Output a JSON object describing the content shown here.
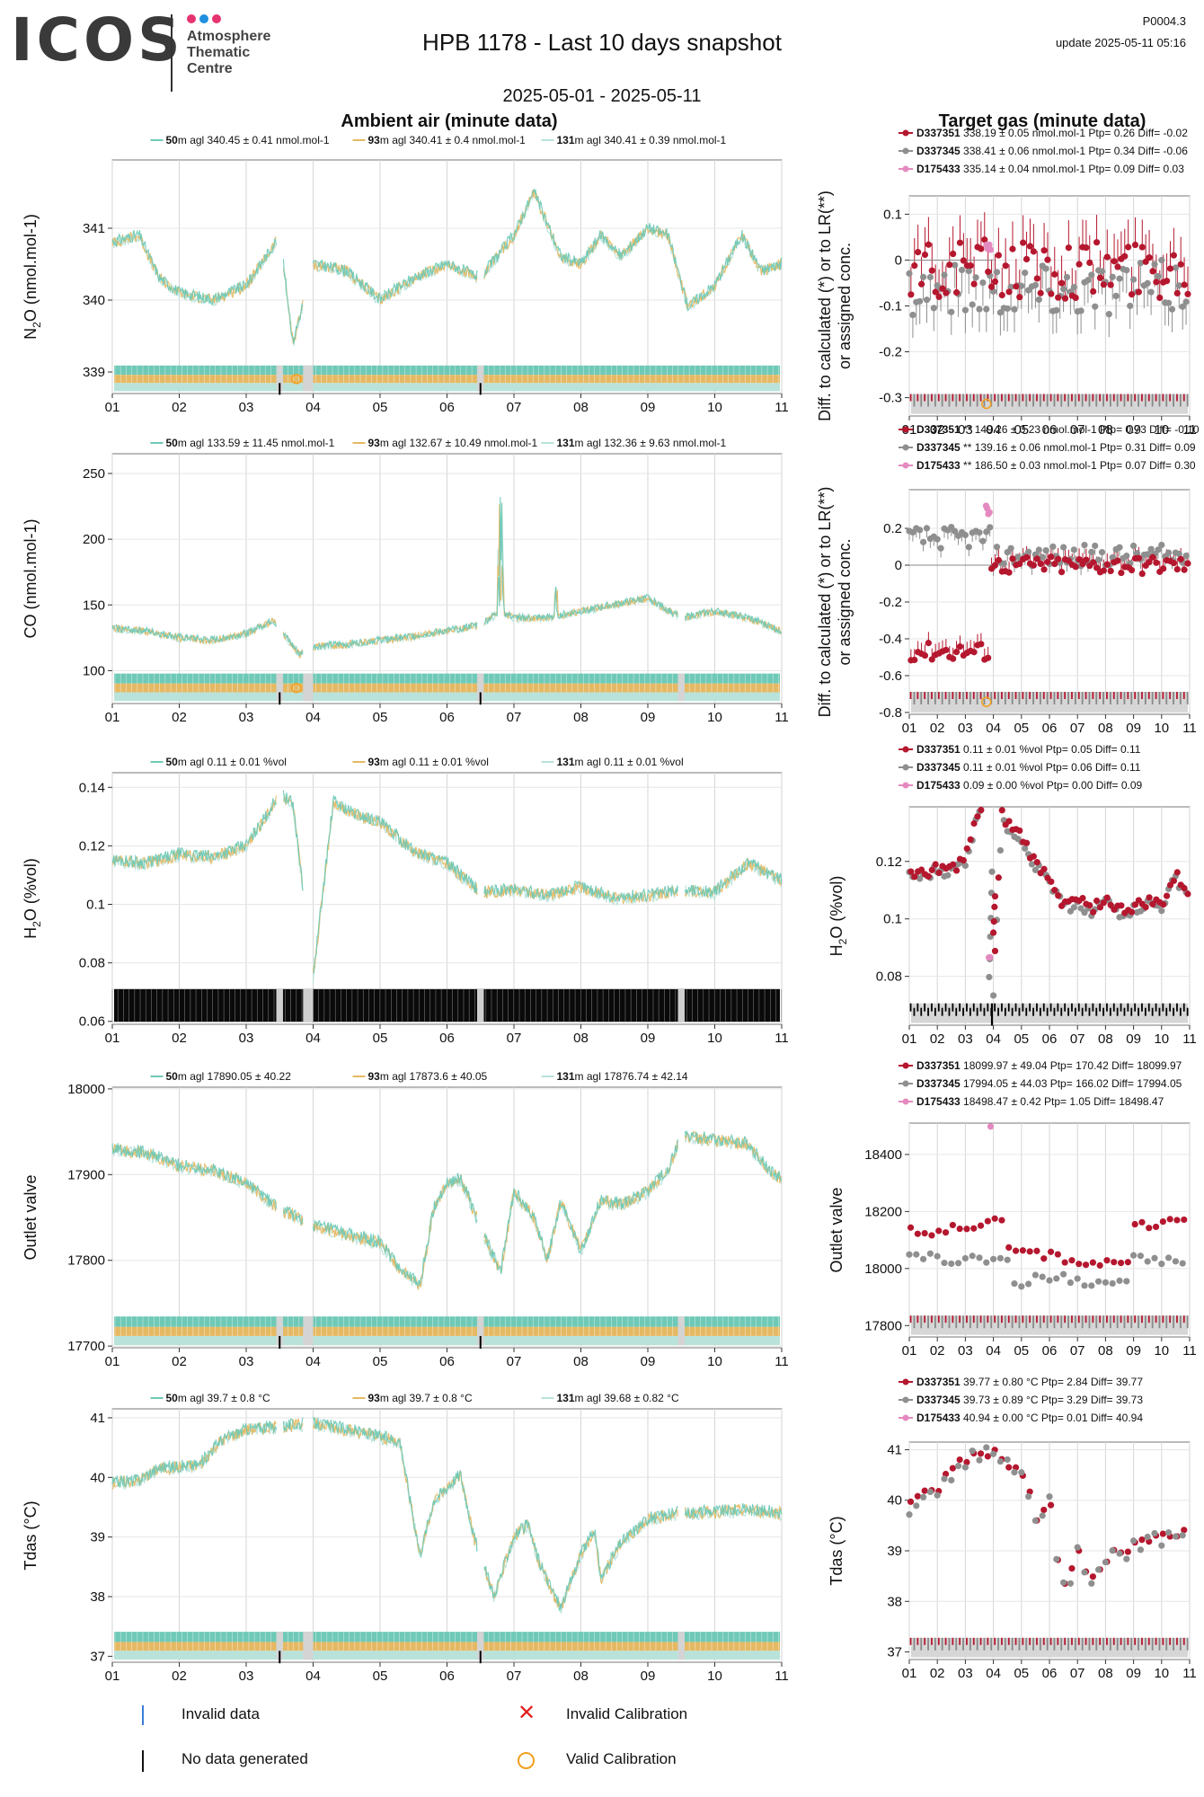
{
  "header": {
    "logo": "ICOS",
    "logo_sub": [
      "Atmosphere",
      "Thematic",
      "Centre"
    ],
    "logo_dot_colors": [
      "#e6336f",
      "#1f8fe0",
      "#e6336f"
    ],
    "title": "HPB 1178 - Last 10 days snapshot",
    "date_range": "2025-05-01 - 2025-05-11",
    "code": "P0004.3",
    "update": "update  2025-05-11 05:16"
  },
  "sections": {
    "left": "Ambient air (minute data)",
    "right": "Target gas (minute data)"
  },
  "colors": {
    "h50": "#6fc9b7",
    "h93": "#e5b964",
    "h131": "#b9e3da",
    "t1": "#b5172e",
    "t2": "#8f8f8f",
    "t3": "#e58ac0",
    "invalid": "#3b7dd8",
    "invalid_cal": "#e02020",
    "valid_cal": "#f0a020"
  },
  "footer_legend": [
    {
      "icon": "blue-line-icon",
      "label": "Invalid data"
    },
    {
      "icon": "red-x-icon",
      "label": "Invalid Calibration"
    },
    {
      "icon": "black-line-icon",
      "label": "No data generated"
    },
    {
      "icon": "orange-circle-icon",
      "label": "Valid Calibration"
    }
  ],
  "chart_data": [
    {
      "panel": "n2o-ambient",
      "type": "line",
      "ylabel": "N2O (nmol.mol-1)",
      "x_ticks": [
        "01",
        "02",
        "03",
        "04",
        "05",
        "06",
        "07",
        "08",
        "09",
        "10",
        "11"
      ],
      "xlim": [
        1,
        11
      ],
      "ylim": [
        338.7,
        341.95
      ],
      "y_ticks": [
        339,
        340,
        341
      ],
      "legend": [
        {
          "height": "50",
          "text": "m agl 340.45 ± 0.41 nmol.mol-1"
        },
        {
          "height": "93",
          "text": "m agl 340.41 ± 0.4 nmol.mol-1"
        },
        {
          "height": "131",
          "text": "m agl 340.41 ± 0.39 nmol.mol-1"
        }
      ],
      "series_key": [
        {
          "x": 1.0,
          "y": 340.8
        },
        {
          "x": 1.4,
          "y": 340.9
        },
        {
          "x": 1.7,
          "y": 340.3
        },
        {
          "x": 2.0,
          "y": 340.1
        },
        {
          "x": 2.5,
          "y": 340.0
        },
        {
          "x": 3.0,
          "y": 340.2
        },
        {
          "x": 3.3,
          "y": 340.6
        },
        {
          "x": 3.5,
          "y": 340.9
        },
        {
          "x": 3.7,
          "y": 339.4
        },
        {
          "x": 4.0,
          "y": 340.5
        },
        {
          "x": 4.5,
          "y": 340.4
        },
        {
          "x": 5.0,
          "y": 340.0
        },
        {
          "x": 5.5,
          "y": 340.3
        },
        {
          "x": 6.0,
          "y": 340.5
        },
        {
          "x": 6.5,
          "y": 340.3
        },
        {
          "x": 7.0,
          "y": 340.9
        },
        {
          "x": 7.3,
          "y": 341.5
        },
        {
          "x": 7.7,
          "y": 340.6
        },
        {
          "x": 8.0,
          "y": 340.5
        },
        {
          "x": 8.3,
          "y": 340.9
        },
        {
          "x": 8.6,
          "y": 340.6
        },
        {
          "x": 9.0,
          "y": 341.0
        },
        {
          "x": 9.3,
          "y": 340.9
        },
        {
          "x": 9.6,
          "y": 339.9
        },
        {
          "x": 10.0,
          "y": 340.2
        },
        {
          "x": 10.4,
          "y": 340.9
        },
        {
          "x": 10.7,
          "y": 340.4
        },
        {
          "x": 11.0,
          "y": 340.5
        }
      ],
      "markers": {
        "no_data": [
          3.5,
          6.5
        ],
        "valid_cal": [
          3.75
        ],
        "gaps": [
          [
            3.45,
            3.55
          ],
          [
            3.85,
            4.0
          ],
          [
            6.45,
            6.55
          ]
        ]
      }
    },
    {
      "panel": "n2o-target",
      "type": "scatter",
      "ylabel": "Diff. to calculated (*) or to LR(**) or assigned conc.",
      "x_ticks": [
        "01",
        "02",
        "03",
        "04",
        "05",
        "06",
        "07",
        "08",
        "09",
        "10",
        "11"
      ],
      "xlim": [
        1,
        11
      ],
      "ylim": [
        -0.34,
        0.14
      ],
      "y_ticks": [
        0.1,
        0.0,
        -0.1,
        -0.2,
        -0.3
      ],
      "legend": [
        {
          "id": "D337351",
          "text": "338.19 ± 0.05 nmol.mol-1 Ptp= 0.26 Diff= -0.02"
        },
        {
          "id": "D337345",
          "text": "338.41 ± 0.06 nmol.mol-1 Ptp= 0.34 Diff= -0.06"
        },
        {
          "id": "D175433",
          "text": "335.14 ± 0.04 nmol.mol-1 Ptp= 0.09 Diff= 0.03"
        }
      ],
      "band": "calibration",
      "pattern": "n2o"
    },
    {
      "panel": "co-ambient",
      "type": "line",
      "ylabel": "CO (nmol.mol-1)",
      "x_ticks": [
        "01",
        "02",
        "03",
        "04",
        "05",
        "06",
        "07",
        "08",
        "09",
        "10",
        "11"
      ],
      "xlim": [
        1,
        11
      ],
      "ylim": [
        75,
        265
      ],
      "y_ticks": [
        100,
        150,
        200,
        250
      ],
      "legend": [
        {
          "height": "50",
          "text": "m agl 133.59 ± 11.45 nmol.mol-1"
        },
        {
          "height": "93",
          "text": "m agl 132.67 ± 10.49 nmol.mol-1"
        },
        {
          "height": "131",
          "text": "m agl 132.36 ± 9.63 nmol.mol-1"
        }
      ],
      "series_key": [
        {
          "x": 1.0,
          "y": 132
        },
        {
          "x": 1.5,
          "y": 130
        },
        {
          "x": 2.0,
          "y": 125
        },
        {
          "x": 2.5,
          "y": 123
        },
        {
          "x": 3.0,
          "y": 128
        },
        {
          "x": 3.4,
          "y": 138
        },
        {
          "x": 3.6,
          "y": 125
        },
        {
          "x": 3.8,
          "y": 112
        },
        {
          "x": 4.0,
          "y": 118
        },
        {
          "x": 4.5,
          "y": 120
        },
        {
          "x": 5.0,
          "y": 123
        },
        {
          "x": 5.5,
          "y": 126
        },
        {
          "x": 6.0,
          "y": 130
        },
        {
          "x": 6.5,
          "y": 135
        },
        {
          "x": 6.8,
          "y": 145
        },
        {
          "x": 7.0,
          "y": 140
        },
        {
          "x": 7.5,
          "y": 140
        },
        {
          "x": 8.0,
          "y": 145
        },
        {
          "x": 8.5,
          "y": 150
        },
        {
          "x": 9.0,
          "y": 155
        },
        {
          "x": 9.5,
          "y": 140
        },
        {
          "x": 10.0,
          "y": 145
        },
        {
          "x": 10.5,
          "y": 140
        },
        {
          "x": 11.0,
          "y": 130
        }
      ],
      "markers": {
        "no_data": [
          3.5,
          6.5
        ],
        "valid_cal": [
          3.75
        ],
        "gaps": [
          [
            3.45,
            3.55
          ],
          [
            3.85,
            4.0
          ],
          [
            6.45,
            6.55
          ],
          [
            9.45,
            9.55
          ]
        ]
      }
    },
    {
      "panel": "co-target",
      "type": "scatter",
      "ylabel": "Diff. to calculated (*) or to LR(**) or assigned conc.",
      "x_ticks": [
        "01",
        "02",
        "03",
        "04",
        "05",
        "06",
        "07",
        "08",
        "09",
        "10",
        "11"
      ],
      "xlim": [
        1,
        11
      ],
      "ylim": [
        -0.81,
        0.41
      ],
      "y_ticks": [
        0.2,
        0.0,
        -0.2,
        -0.4,
        -0.6,
        -0.8
      ],
      "legend": [
        {
          "id": "D337351",
          "text": "** 149.26 ± 0.23 nmol.mol-1 Ptp= 0.73 Diff= -0.10"
        },
        {
          "id": "D337345",
          "text": "** 139.16 ± 0.06 nmol.mol-1 Ptp= 0.31 Diff= 0.09"
        },
        {
          "id": "D175433",
          "text": "** 186.50 ± 0.03 nmol.mol-1 Ptp= 0.07 Diff= 0.30"
        }
      ],
      "band": "calibration",
      "pattern": "co"
    },
    {
      "panel": "h2o-ambient",
      "type": "line",
      "ylabel": "H2O (%vol)",
      "x_ticks": [
        "01",
        "02",
        "03",
        "04",
        "05",
        "06",
        "07",
        "08",
        "09",
        "10",
        "11"
      ],
      "xlim": [
        1,
        11
      ],
      "ylim": [
        0.059,
        0.145
      ],
      "y_ticks": [
        0.06,
        0.08,
        0.1,
        0.12,
        0.14
      ],
      "legend": [
        {
          "height": "50",
          "text": "m agl 0.11 ± 0.01 %vol"
        },
        {
          "height": "93",
          "text": "m agl 0.11 ± 0.01 %vol"
        },
        {
          "height": "131",
          "text": "m agl 0.11 ± 0.01 %vol"
        }
      ],
      "series_key": [
        {
          "x": 1.0,
          "y": 0.115
        },
        {
          "x": 1.5,
          "y": 0.114
        },
        {
          "x": 2.0,
          "y": 0.117
        },
        {
          "x": 2.5,
          "y": 0.116
        },
        {
          "x": 3.0,
          "y": 0.12
        },
        {
          "x": 3.3,
          "y": 0.13
        },
        {
          "x": 3.5,
          "y": 0.138
        },
        {
          "x": 3.7,
          "y": 0.134
        },
        {
          "x": 4.0,
          "y": 0.075
        },
        {
          "x": 4.3,
          "y": 0.135
        },
        {
          "x": 4.6,
          "y": 0.131
        },
        {
          "x": 5.0,
          "y": 0.128
        },
        {
          "x": 5.5,
          "y": 0.118
        },
        {
          "x": 6.0,
          "y": 0.114
        },
        {
          "x": 6.5,
          "y": 0.104
        },
        {
          "x": 7.0,
          "y": 0.105
        },
        {
          "x": 7.5,
          "y": 0.103
        },
        {
          "x": 8.0,
          "y": 0.106
        },
        {
          "x": 8.5,
          "y": 0.102
        },
        {
          "x": 9.0,
          "y": 0.103
        },
        {
          "x": 9.5,
          "y": 0.105
        },
        {
          "x": 10.0,
          "y": 0.104
        },
        {
          "x": 10.5,
          "y": 0.114
        },
        {
          "x": 11.0,
          "y": 0.108
        }
      ],
      "markers": {
        "no_data_band": true,
        "gaps": [
          [
            3.45,
            3.55
          ],
          [
            3.85,
            4.0
          ],
          [
            6.45,
            6.55
          ],
          [
            9.45,
            9.55
          ]
        ]
      }
    },
    {
      "panel": "h2o-target",
      "type": "scatter",
      "ylabel": "H2O (%vol)",
      "x_ticks": [
        "01",
        "02",
        "03",
        "04",
        "05",
        "06",
        "07",
        "08",
        "09",
        "10",
        "11"
      ],
      "xlim": [
        1,
        11
      ],
      "ylim": [
        0.063,
        0.139
      ],
      "y_ticks": [
        0.08,
        0.1,
        0.12
      ],
      "legend": [
        {
          "id": "D337351",
          "text": "0.11 ± 0.01 %vol Ptp= 0.05 Diff= 0.11"
        },
        {
          "id": "D337345",
          "text": "0.11 ± 0.01 %vol Ptp= 0.06 Diff= 0.11"
        },
        {
          "id": "D175433",
          "text": "0.09 ± 0.00 %vol Ptp= 0.00 Diff= 0.09"
        }
      ],
      "band": "nodata",
      "pattern": "h2o"
    },
    {
      "panel": "outlet-ambient",
      "type": "line",
      "ylabel": "Outlet valve",
      "x_ticks": [
        "01",
        "02",
        "03",
        "04",
        "05",
        "06",
        "07",
        "08",
        "09",
        "10",
        "11"
      ],
      "xlim": [
        1,
        11
      ],
      "ylim": [
        17698,
        18002
      ],
      "y_ticks": [
        17700,
        17800,
        17900,
        18000
      ],
      "legend": [
        {
          "height": "50",
          "text": "m agl 17890.05 ± 40.22"
        },
        {
          "height": "93",
          "text": "m agl 17873.6 ± 40.05"
        },
        {
          "height": "131",
          "text": "m agl 17876.74 ± 42.14"
        }
      ],
      "series_key": [
        {
          "x": 1.0,
          "y": 17930
        },
        {
          "x": 1.5,
          "y": 17925
        },
        {
          "x": 2.0,
          "y": 17910
        },
        {
          "x": 2.5,
          "y": 17905
        },
        {
          "x": 3.0,
          "y": 17890
        },
        {
          "x": 3.5,
          "y": 17860
        },
        {
          "x": 4.0,
          "y": 17840
        },
        {
          "x": 4.5,
          "y": 17830
        },
        {
          "x": 5.0,
          "y": 17820
        },
        {
          "x": 5.3,
          "y": 17790
        },
        {
          "x": 5.6,
          "y": 17770
        },
        {
          "x": 5.8,
          "y": 17860
        },
        {
          "x": 6.0,
          "y": 17890
        },
        {
          "x": 6.2,
          "y": 17895
        },
        {
          "x": 6.6,
          "y": 17820
        },
        {
          "x": 6.8,
          "y": 17785
        },
        {
          "x": 7.0,
          "y": 17880
        },
        {
          "x": 7.3,
          "y": 17850
        },
        {
          "x": 7.5,
          "y": 17800
        },
        {
          "x": 7.7,
          "y": 17870
        },
        {
          "x": 8.0,
          "y": 17810
        },
        {
          "x": 8.3,
          "y": 17870
        },
        {
          "x": 8.6,
          "y": 17865
        },
        {
          "x": 9.0,
          "y": 17880
        },
        {
          "x": 9.3,
          "y": 17905
        },
        {
          "x": 9.5,
          "y": 17945
        },
        {
          "x": 10.0,
          "y": 17940
        },
        {
          "x": 10.5,
          "y": 17935
        },
        {
          "x": 10.8,
          "y": 17905
        },
        {
          "x": 11.0,
          "y": 17895
        }
      ],
      "markers": {
        "no_data": [
          3.5,
          6.5
        ],
        "gaps": [
          [
            3.45,
            3.55
          ],
          [
            3.85,
            4.0
          ],
          [
            6.45,
            6.55
          ],
          [
            9.45,
            9.55
          ]
        ]
      }
    },
    {
      "panel": "outlet-target",
      "type": "scatter",
      "ylabel": "Outlet valve",
      "x_ticks": [
        "01",
        "02",
        "03",
        "04",
        "05",
        "06",
        "07",
        "08",
        "09",
        "10",
        "11"
      ],
      "xlim": [
        1,
        11
      ],
      "ylim": [
        17760,
        18510
      ],
      "y_ticks": [
        17800,
        18000,
        18200,
        18400
      ],
      "legend": [
        {
          "id": "D337351",
          "text": "18099.97 ± 49.04  Ptp= 170.42 Diff= 18099.97"
        },
        {
          "id": "D337345",
          "text": "17994.05 ± 44.03  Ptp= 166.02 Diff= 17994.05"
        },
        {
          "id": "D175433",
          "text": "18498.47 ± 0.42  Ptp= 1.05 Diff= 18498.47"
        }
      ],
      "band": "calibration",
      "pattern": "outlet"
    },
    {
      "panel": "tdas-ambient",
      "type": "line",
      "ylabel": "Tdas (°C)",
      "x_ticks": [
        "01",
        "02",
        "03",
        "04",
        "05",
        "06",
        "07",
        "08",
        "09",
        "10",
        "11"
      ],
      "xlim": [
        1,
        11
      ],
      "ylim": [
        36.9,
        41.15
      ],
      "y_ticks": [
        37,
        38,
        39,
        40,
        41
      ],
      "legend": [
        {
          "height": "50",
          "text": "m agl 39.7 ± 0.8 °C"
        },
        {
          "height": "93",
          "text": "m agl 39.7 ± 0.8 °C"
        },
        {
          "height": "131",
          "text": "m agl 39.68 ± 0.82 °C"
        }
      ],
      "series_key": [
        {
          "x": 1.0,
          "y": 39.9
        },
        {
          "x": 1.4,
          "y": 39.95
        },
        {
          "x": 1.7,
          "y": 40.15
        },
        {
          "x": 2.3,
          "y": 40.2
        },
        {
          "x": 2.6,
          "y": 40.6
        },
        {
          "x": 3.0,
          "y": 40.8
        },
        {
          "x": 3.5,
          "y": 40.85
        },
        {
          "x": 4.0,
          "y": 40.9
        },
        {
          "x": 4.5,
          "y": 40.8
        },
        {
          "x": 5.3,
          "y": 40.6
        },
        {
          "x": 5.45,
          "y": 39.6
        },
        {
          "x": 5.6,
          "y": 38.7
        },
        {
          "x": 5.8,
          "y": 39.6
        },
        {
          "x": 6.2,
          "y": 40.05
        },
        {
          "x": 6.4,
          "y": 39.0
        },
        {
          "x": 6.7,
          "y": 38.0
        },
        {
          "x": 7.0,
          "y": 39.0
        },
        {
          "x": 7.2,
          "y": 39.2
        },
        {
          "x": 7.4,
          "y": 38.5
        },
        {
          "x": 7.7,
          "y": 37.8
        },
        {
          "x": 8.0,
          "y": 38.7
        },
        {
          "x": 8.2,
          "y": 39.1
        },
        {
          "x": 8.3,
          "y": 38.3
        },
        {
          "x": 8.6,
          "y": 38.9
        },
        {
          "x": 9.0,
          "y": 39.3
        },
        {
          "x": 9.5,
          "y": 39.4
        },
        {
          "x": 10.5,
          "y": 39.45
        },
        {
          "x": 11.0,
          "y": 39.4
        }
      ],
      "markers": {
        "no_data": [
          3.5,
          6.5
        ],
        "gaps": [
          [
            3.45,
            3.55
          ],
          [
            3.85,
            4.0
          ],
          [
            6.45,
            6.55
          ],
          [
            9.45,
            9.55
          ]
        ]
      }
    },
    {
      "panel": "tdas-target",
      "type": "scatter",
      "ylabel": "Tdas (°C)",
      "x_ticks": [
        "01",
        "02",
        "03",
        "04",
        "05",
        "06",
        "07",
        "08",
        "09",
        "10",
        "11"
      ],
      "xlim": [
        1,
        11
      ],
      "ylim": [
        36.85,
        41.15
      ],
      "y_ticks": [
        37,
        38,
        39,
        40,
        41
      ],
      "legend": [
        {
          "id": "D337351",
          "text": "39.77 ± 0.80 °C Ptp= 2.84 Diff= 39.77"
        },
        {
          "id": "D337345",
          "text": "39.73 ± 0.89 °C Ptp= 3.29 Diff= 39.73"
        },
        {
          "id": "D175433",
          "text": "40.94 ± 0.00 °C Ptp= 0.01 Diff= 40.94"
        }
      ],
      "band": "calibration",
      "pattern": "tdas"
    }
  ]
}
